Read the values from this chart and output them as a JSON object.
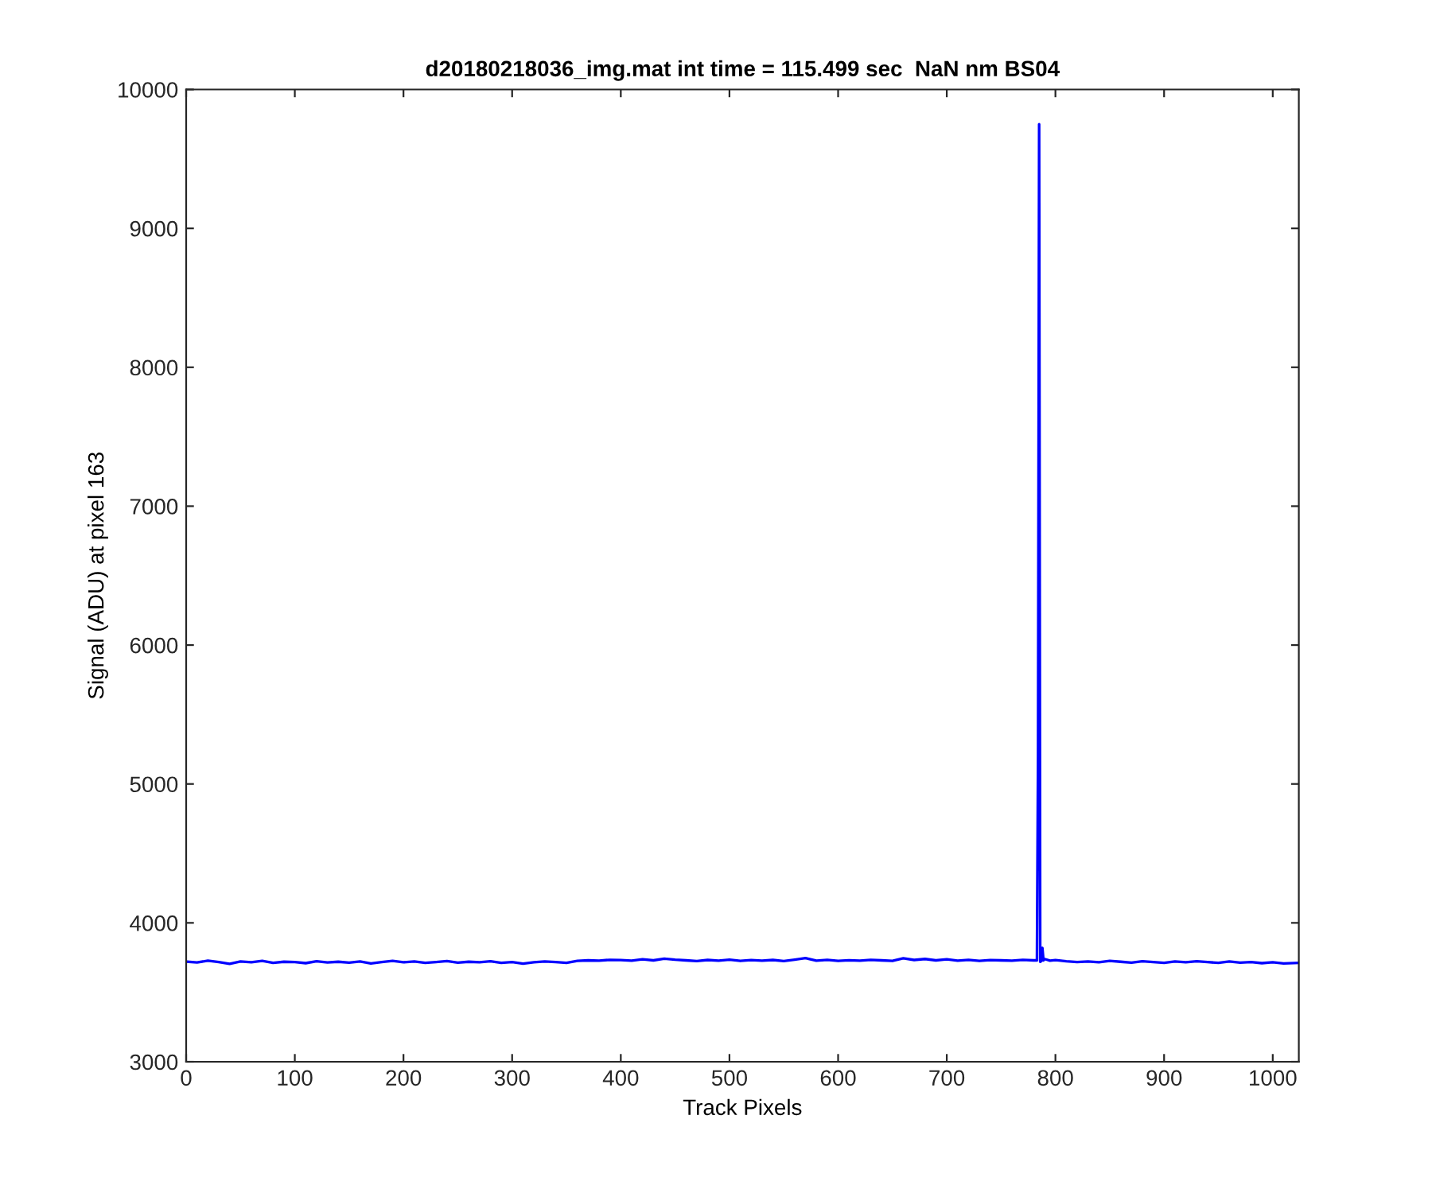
{
  "chart_data": {
    "type": "line",
    "title": "d20180218036_img.mat int time = 115.499 sec  NaN nm BS04",
    "xlabel": "Track Pixels",
    "ylabel": "Signal (ADU) at pixel 163",
    "series": [
      {
        "color": "#0000ff",
        "x": [
          1,
          10,
          20,
          30,
          40,
          50,
          60,
          70,
          80,
          90,
          100,
          110,
          120,
          130,
          140,
          150,
          160,
          170,
          180,
          190,
          200,
          210,
          220,
          230,
          240,
          250,
          260,
          270,
          280,
          290,
          300,
          310,
          320,
          330,
          340,
          350,
          360,
          370,
          380,
          390,
          400,
          410,
          420,
          430,
          440,
          450,
          460,
          470,
          480,
          490,
          500,
          510,
          520,
          530,
          540,
          550,
          560,
          570,
          580,
          590,
          600,
          610,
          620,
          630,
          640,
          650,
          660,
          670,
          680,
          690,
          700,
          710,
          720,
          730,
          740,
          750,
          760,
          770,
          780,
          783,
          784,
          785,
          786,
          787,
          788,
          789,
          790,
          795,
          800,
          810,
          820,
          830,
          840,
          850,
          860,
          870,
          880,
          890,
          900,
          910,
          920,
          930,
          940,
          950,
          960,
          970,
          980,
          990,
          1000,
          1010,
          1024
        ],
        "values": [
          3720,
          3715,
          3728,
          3718,
          3705,
          3722,
          3716,
          3726,
          3712,
          3720,
          3718,
          3710,
          3724,
          3715,
          3720,
          3714,
          3722,
          3708,
          3718,
          3726,
          3716,
          3722,
          3712,
          3718,
          3725,
          3714,
          3720,
          3716,
          3724,
          3712,
          3718,
          3706,
          3716,
          3722,
          3718,
          3712,
          3726,
          3730,
          3728,
          3734,
          3732,
          3728,
          3738,
          3730,
          3742,
          3735,
          3730,
          3725,
          3733,
          3728,
          3735,
          3726,
          3732,
          3728,
          3733,
          3725,
          3735,
          3746,
          3728,
          3734,
          3726,
          3731,
          3728,
          3734,
          3730,
          3726,
          3745,
          3733,
          3740,
          3730,
          3738,
          3728,
          3734,
          3726,
          3732,
          3730,
          3728,
          3734,
          3730,
          3730,
          5200,
          9750,
          3720,
          3725,
          3820,
          3730,
          3740,
          3728,
          3732,
          3724,
          3718,
          3722,
          3716,
          3726,
          3720,
          3714,
          3724,
          3718,
          3712,
          3722,
          3716,
          3724,
          3718,
          3712,
          3722,
          3714,
          3718,
          3710,
          3716,
          3708,
          3712
        ]
      }
    ],
    "xlim": [
      0,
      1024
    ],
    "xticks": [
      0,
      100,
      200,
      300,
      400,
      500,
      600,
      700,
      800,
      900,
      1000
    ],
    "ylim": [
      3000,
      10000
    ],
    "yticks": [
      3000,
      4000,
      5000,
      6000,
      7000,
      8000,
      9000,
      10000
    ],
    "grid": false,
    "legend": false
  }
}
